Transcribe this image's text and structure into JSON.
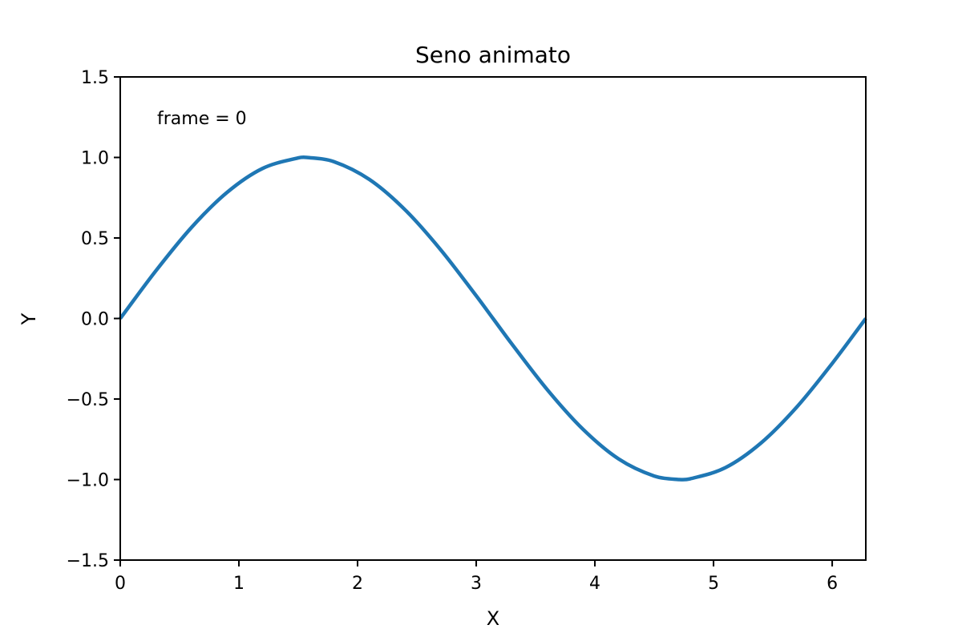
{
  "chart_data": {
    "type": "line",
    "title": "Seno animato",
    "xlabel": "X",
    "ylabel": "Y",
    "xlim": [
      0,
      6.283185307179586
    ],
    "ylim": [
      -1.5,
      1.5
    ],
    "xticks": [
      "0",
      "1",
      "2",
      "3",
      "4",
      "5",
      "6"
    ],
    "yticks": [
      "−1.5",
      "−1.0",
      "−0.5",
      "0.0",
      "0.5",
      "1.0",
      "1.5"
    ],
    "annotation": "frame = 0",
    "grid": false,
    "series": [
      {
        "color": "#1f77b4",
        "x": [
          0,
          0.3,
          0.6,
          0.9,
          1.2,
          1.5,
          1.5708,
          1.8,
          2.1,
          2.4,
          2.7,
          3.0,
          3.1416,
          3.3,
          3.6,
          3.9,
          4.2,
          4.5,
          4.7124,
          4.8,
          5.1,
          5.4,
          5.7,
          6.0,
          6.2832
        ],
        "y": [
          0,
          0.296,
          0.565,
          0.783,
          0.932,
          0.997,
          1.0,
          0.974,
          0.863,
          0.675,
          0.427,
          0.141,
          0,
          -0.158,
          -0.443,
          -0.688,
          -0.872,
          -0.978,
          -1.0,
          -0.996,
          -0.926,
          -0.773,
          -0.551,
          -0.279,
          0
        ]
      }
    ]
  }
}
